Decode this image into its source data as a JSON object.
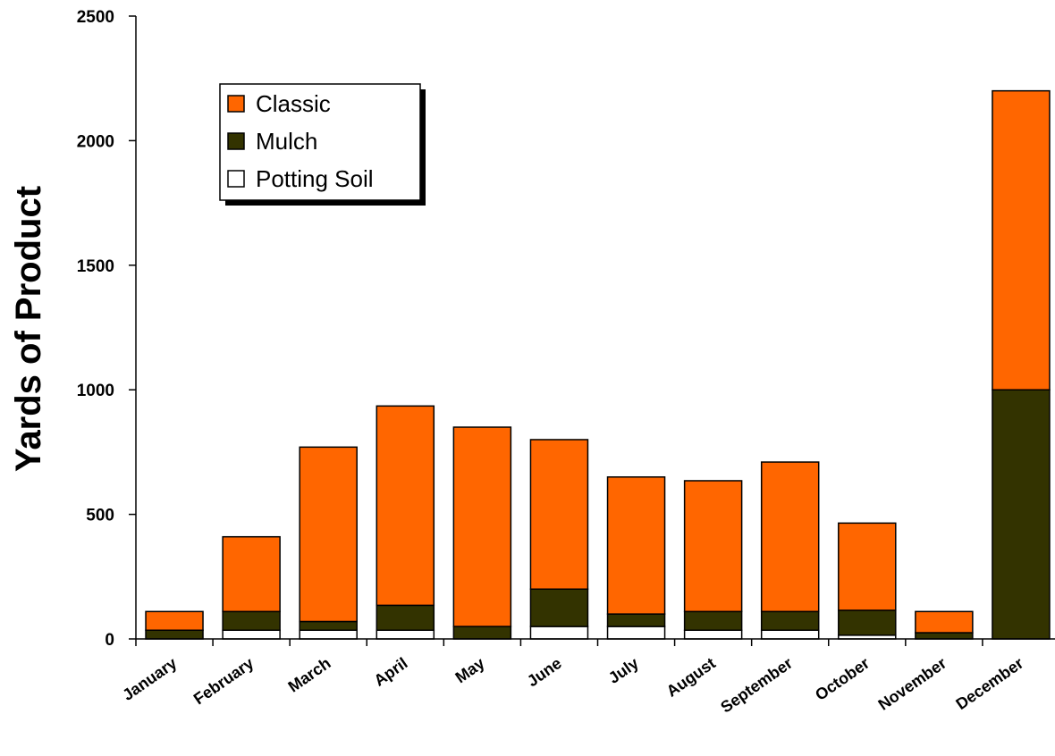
{
  "chart_data": {
    "type": "bar",
    "stacked": true,
    "ylabel": "Yards of Product",
    "xlabel": "",
    "ylim": [
      0,
      2500
    ],
    "yticks": [
      "0",
      "500",
      "1000",
      "1500",
      "2000",
      "2500"
    ],
    "categories": [
      "January",
      "February",
      "March",
      "April",
      "May",
      "June",
      "July",
      "August",
      "September",
      "October",
      "November",
      "December"
    ],
    "series": [
      {
        "name": "Potting Soil",
        "color": "#ffffff",
        "values": [
          0,
          35,
          35,
          35,
          0,
          50,
          50,
          35,
          35,
          15,
          0,
          0
        ]
      },
      {
        "name": "Mulch",
        "color": "#333300",
        "values": [
          35,
          75,
          35,
          100,
          50,
          150,
          50,
          75,
          75,
          100,
          25,
          1000
        ]
      },
      {
        "name": "Classic",
        "color": "#ff6600",
        "values": [
          75,
          300,
          700,
          800,
          800,
          600,
          550,
          525,
          600,
          350,
          85,
          1200
        ]
      }
    ],
    "legend": {
      "position": "top-left",
      "entries": [
        "Classic",
        "Mulch",
        "Potting Soil"
      ]
    },
    "grid": false
  }
}
